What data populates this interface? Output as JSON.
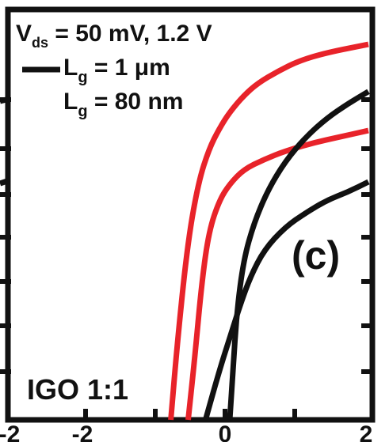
{
  "chart_data": {
    "type": "line",
    "panel_label": "(c)",
    "material_label": "IGO 1:1",
    "legend": {
      "entries": [
        {
          "label": "V_ds = 50 mV, 1.2 V"
        },
        {
          "label": "L_g = 1 μm"
        },
        {
          "label": "L_g = 80 nm"
        }
      ]
    },
    "x_ticks": [
      "-2",
      "-2",
      "0",
      "2"
    ],
    "xlim": [
      -3.2,
      2.0
    ],
    "ylim": [
      0,
      10
    ],
    "grid": false,
    "series": [
      {
        "color": "#e8232a",
        "x": [
          -0.85,
          -0.75,
          -0.6,
          -0.45,
          -0.3,
          -0.15,
          0.0,
          0.2,
          0.4,
          0.7,
          1.0,
          1.4,
          2.0
        ],
        "y": [
          0.0,
          2.0,
          4.4,
          5.8,
          6.6,
          7.1,
          7.5,
          7.9,
          8.2,
          8.5,
          8.75,
          8.95,
          9.15
        ]
      },
      {
        "color": "#e8232a",
        "x": [
          -0.6,
          -0.5,
          -0.4,
          -0.3,
          -0.15,
          0.0,
          0.2,
          0.5,
          0.8,
          1.2,
          1.6,
          2.0
        ],
        "y": [
          0.0,
          1.6,
          3.4,
          4.6,
          5.35,
          5.75,
          6.1,
          6.35,
          6.55,
          6.75,
          6.9,
          7.05
        ]
      },
      {
        "color": "#111111",
        "x": [
          0.0,
          0.05,
          0.1,
          0.2,
          0.35,
          0.55,
          0.8,
          1.1,
          1.4,
          1.7,
          2.0
        ],
        "y": [
          0.0,
          1.3,
          2.6,
          3.9,
          4.8,
          5.6,
          6.3,
          6.9,
          7.35,
          7.7,
          8.0
        ]
      },
      {
        "color": "#111111",
        "x": [
          -0.35,
          -0.15,
          0.0,
          0.15,
          0.3,
          0.5,
          0.8,
          1.1,
          1.4,
          1.7,
          2.0
        ],
        "y": [
          0.0,
          1.2,
          2.0,
          2.8,
          3.5,
          4.15,
          4.7,
          5.05,
          5.35,
          5.55,
          5.8
        ]
      }
    ]
  },
  "legend_swatch_color": "#111111"
}
